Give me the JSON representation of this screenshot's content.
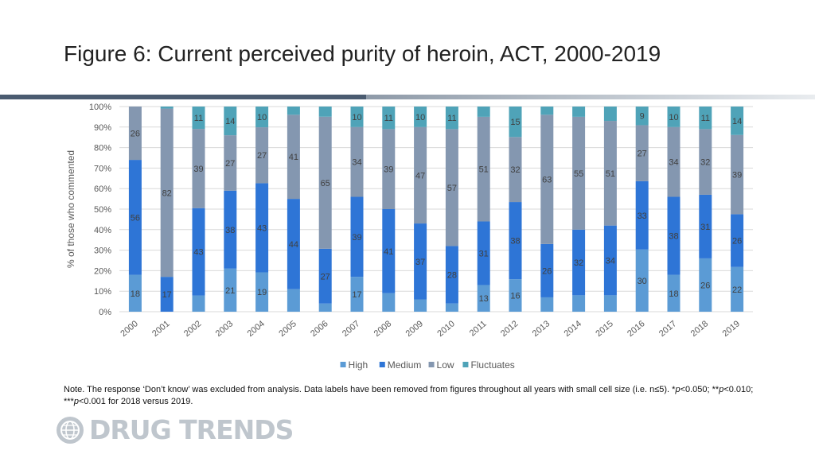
{
  "page": {
    "title": "Figure 6: Current perceived purity of heroin, ACT, 2000-2019",
    "note_prefix": "Note. The response ‘Don’t know’ was excluded from analysis. Data labels have been removed from figures throughout all years with small cell size (i.e. n≤5). *",
    "note_p1": "p",
    "note_mid1": "<0.050; **",
    "note_p2": "p",
    "note_mid2": "<0.010; ***",
    "note_p3": "p",
    "note_suffix": "<0.001 for 2018 versus 2019.",
    "logo_text": "DRUG TRENDS",
    "logo_icon": "globe-icon"
  },
  "chart_data": {
    "type": "bar",
    "stacked": true,
    "percent": true,
    "categories": [
      "2000",
      "2001",
      "2002",
      "2003",
      "2004",
      "2005",
      "2006",
      "2007",
      "2008",
      "2009",
      "2010",
      "2011",
      "2012",
      "2013",
      "2014",
      "2015",
      "2016",
      "2017",
      "2018",
      "2019"
    ],
    "series": [
      {
        "name": "High",
        "color": "#5b9bd5",
        "values": [
          18,
          0,
          8,
          21,
          19,
          11,
          4,
          17,
          9,
          6,
          4,
          13,
          16,
          7,
          8,
          8,
          30,
          18,
          26,
          22
        ],
        "labels": [
          "18",
          "",
          "",
          "21",
          "19",
          "",
          "",
          "17",
          "",
          "",
          "",
          "13",
          "16",
          "",
          "",
          "",
          "30",
          "18",
          "26",
          "22"
        ]
      },
      {
        "name": "Medium",
        "color": "#2e75d6",
        "values": [
          56,
          17,
          43,
          38,
          43,
          44,
          27,
          39,
          41,
          37,
          28,
          31,
          38,
          26,
          32,
          34,
          33,
          38,
          31,
          26
        ],
        "labels": [
          "56",
          "17",
          "43",
          "38",
          "43",
          "44",
          "27",
          "39",
          "41",
          "37",
          "28",
          "31",
          "38",
          "26",
          "32",
          "34",
          "33",
          "38",
          "31",
          "26"
        ]
      },
      {
        "name": "Low",
        "color": "#8497b0",
        "values": [
          26,
          82,
          39,
          27,
          27,
          41,
          65,
          34,
          39,
          47,
          57,
          51,
          32,
          63,
          55,
          51,
          27,
          34,
          32,
          39
        ],
        "labels": [
          "26",
          "82",
          "39",
          "27",
          "27",
          "41",
          "65",
          "34",
          "39",
          "47",
          "57",
          "51",
          "32",
          "63",
          "55",
          "51",
          "27",
          "34",
          "32",
          "39"
        ]
      },
      {
        "name": "Fluctuates",
        "color": "#4fa3b8",
        "values": [
          0,
          1,
          11,
          14,
          10,
          4,
          5,
          10,
          11,
          10,
          11,
          5,
          15,
          4,
          5,
          7,
          9,
          10,
          11,
          14
        ],
        "labels": [
          "",
          "",
          "11",
          "14",
          "10",
          "",
          "",
          "10",
          "11",
          "10",
          "11",
          "",
          "15",
          "",
          "",
          "",
          "9",
          "10",
          "11",
          "14"
        ]
      }
    ],
    "ylabel": "% of those who commented",
    "ylim": [
      0,
      100
    ],
    "yticks": [
      "0%",
      "10%",
      "20%",
      "30%",
      "40%",
      "50%",
      "60%",
      "70%",
      "80%",
      "90%",
      "100%"
    ],
    "grid": true,
    "legend_position": "bottom"
  }
}
